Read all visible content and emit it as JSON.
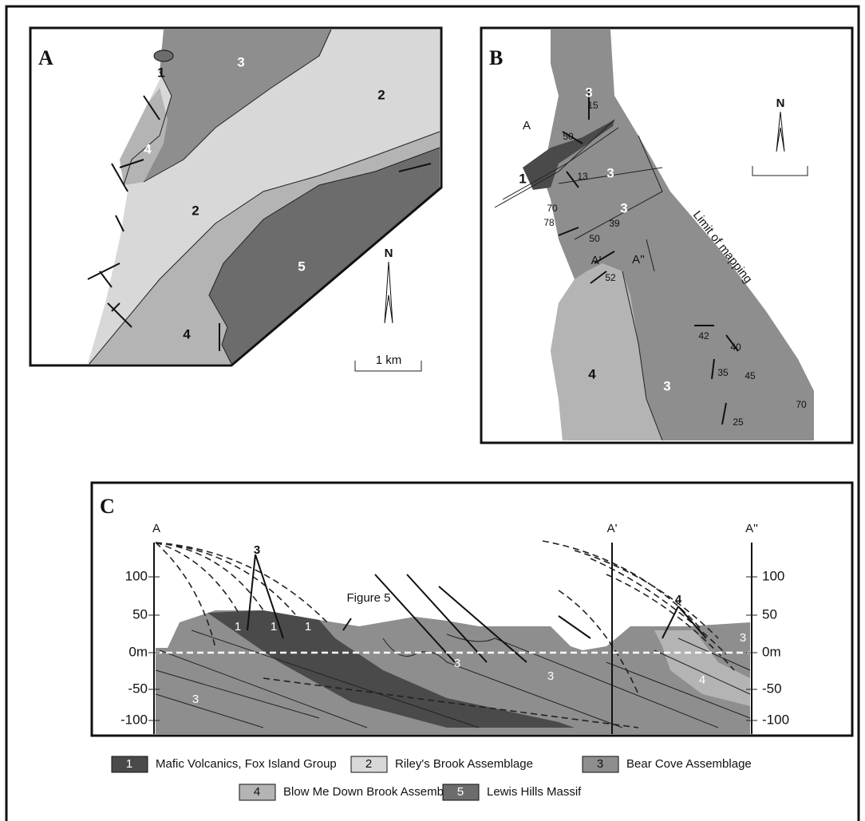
{
  "panel_a": {
    "label": "A",
    "units": [
      "1",
      "3",
      "2",
      "4",
      "2",
      "5",
      "4"
    ],
    "north": "N",
    "scale": "1 km"
  },
  "panel_b": {
    "label": "B",
    "units": [
      "3",
      "1",
      "3",
      "3",
      "4",
      "3"
    ],
    "dips": [
      "15",
      "50",
      "13",
      "70",
      "78",
      "39",
      "50",
      "52",
      "42",
      "40",
      "35",
      "45",
      "25",
      "70"
    ],
    "points": [
      "A",
      "A'",
      "A''"
    ],
    "note": "Limit of mapping",
    "north": "N"
  },
  "panel_c": {
    "label": "C",
    "sections": [
      "A",
      "A'",
      "A''"
    ],
    "callouts": [
      "3",
      "4",
      "Figure 5"
    ],
    "left_axis": [
      "100",
      "50",
      "0m",
      "-50",
      "-100"
    ],
    "right_axis": [
      "100",
      "50",
      "0m",
      "-50",
      "-100"
    ],
    "units": [
      "1",
      "1",
      "1",
      "3",
      "3",
      "3",
      "4",
      "3"
    ]
  },
  "legend": [
    {
      "key": "1",
      "label": "Mafic Volcanics, Fox Island Group"
    },
    {
      "key": "2",
      "label": "Riley's Brook Assemblage"
    },
    {
      "key": "3",
      "label": "Bear Cove Assemblage"
    },
    {
      "key": "4",
      "label": "Blow Me Down Brook Assemblage"
    },
    {
      "key": "5",
      "label": "Lewis Hills Massif"
    }
  ]
}
